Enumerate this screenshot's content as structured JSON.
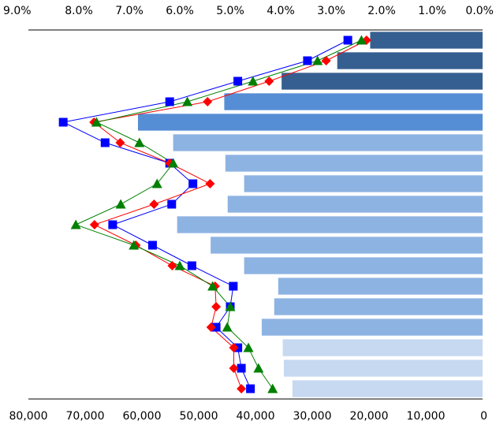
{
  "chart_data": {
    "type": "bar",
    "orientation": "horizontal-reversed",
    "title": "",
    "bottom_axis": {
      "ticks": [
        80000,
        70000,
        60000,
        50000,
        40000,
        30000,
        20000,
        10000,
        0
      ],
      "tick_labels": [
        "80,000",
        "70,000",
        "60,000",
        "50,000",
        "40,000",
        "30,000",
        "20,000",
        "10,000",
        "0"
      ],
      "range": [
        80000,
        0
      ]
    },
    "top_axis": {
      "ticks": [
        0.09,
        0.08,
        0.07,
        0.06,
        0.05,
        0.04,
        0.03,
        0.02,
        0.01,
        0.0
      ],
      "tick_labels": [
        "9.0%",
        "8.0%",
        "7.0%",
        "6.0%",
        "5.0%",
        "4.0%",
        "3.0%",
        "2.0%",
        "1.0%",
        "0.0%"
      ],
      "range": [
        0.09,
        0.0
      ]
    },
    "category_count": 18,
    "bars": {
      "values": [
        19800,
        25600,
        35400,
        45500,
        60700,
        54500,
        45300,
        42000,
        44900,
        53800,
        47900,
        42000,
        36000,
        36700,
        38900,
        35200,
        35000,
        33500
      ],
      "colors": [
        "#365F91",
        "#365F91",
        "#365F91",
        "#558ED5",
        "#558ED5",
        "#8DB3E2",
        "#8DB3E2",
        "#8DB3E2",
        "#8DB3E2",
        "#8DB3E2",
        "#8DB3E2",
        "#8DB3E2",
        "#8DB3E2",
        "#8DB3E2",
        "#8DB3E2",
        "#C6D9F1",
        "#C6D9F1",
        "#C6D9F1"
      ]
    },
    "series": [
      {
        "color": "#0000FF",
        "marker": "square",
        "values": [
          0.0267,
          0.0347,
          0.0485,
          0.062,
          0.0831,
          0.0748,
          0.062,
          0.0574,
          0.0616,
          0.0733,
          0.0654,
          0.0576,
          0.0494,
          0.05,
          0.0528,
          0.0485,
          0.0478,
          0.046
        ]
      },
      {
        "color": "#FF0000",
        "marker": "diamond",
        "values": [
          0.023,
          0.031,
          0.0423,
          0.0545,
          0.077,
          0.0718,
          0.062,
          0.054,
          0.0651,
          0.0769,
          0.0687,
          0.0615,
          0.053,
          0.0528,
          0.0538,
          0.0493,
          0.0493,
          0.0478
        ]
      },
      {
        "color": "#008000",
        "marker": "triangle",
        "values": [
          0.024,
          0.0327,
          0.0455,
          0.0585,
          0.0765,
          0.068,
          0.0613,
          0.0645,
          0.0717,
          0.0806,
          0.0691,
          0.06,
          0.0535,
          0.05,
          0.0506,
          0.0464,
          0.0444,
          0.0416
        ]
      }
    ]
  }
}
